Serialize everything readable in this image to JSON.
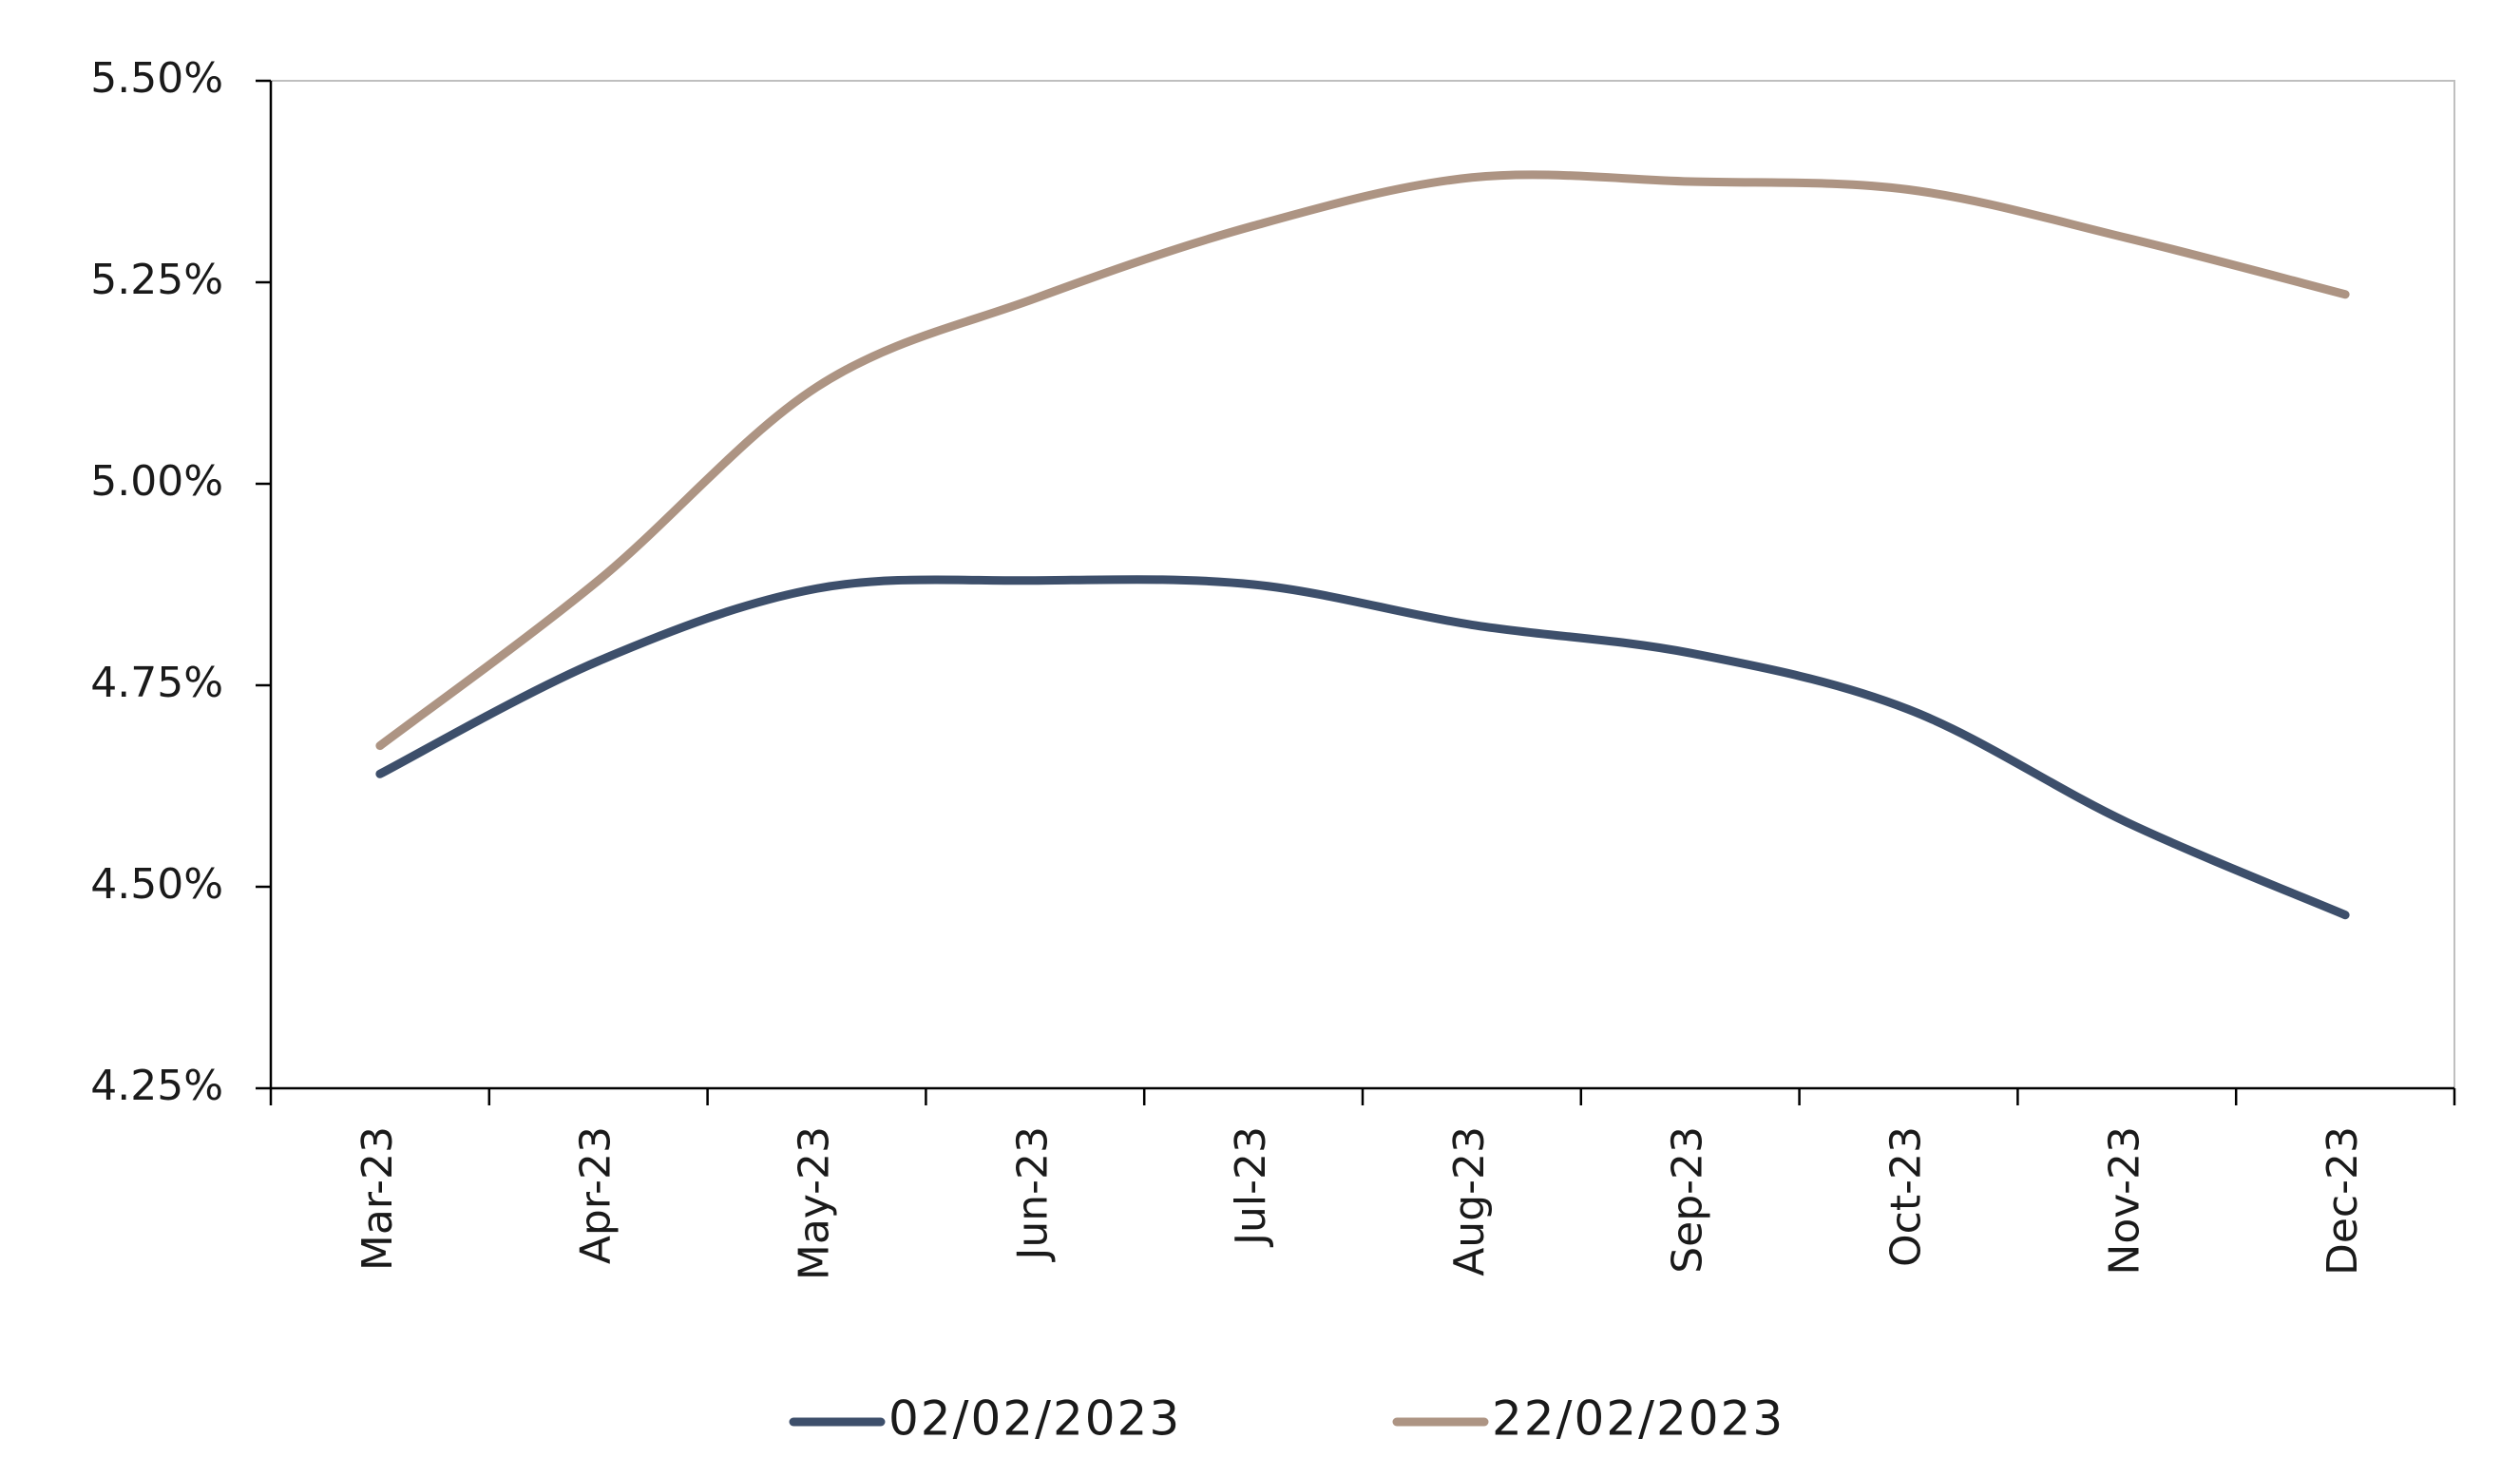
{
  "chart_data": {
    "type": "line",
    "categories": [
      "Mar-23",
      "Apr-23",
      "May-23",
      "Jun-23",
      "Jul-23",
      "Aug-23",
      "Sep-23",
      "Oct-23",
      "Nov-23",
      "Dec-23"
    ],
    "series": [
      {
        "name": "02/02/2023",
        "color": "#3d4f6b",
        "values": [
          4.64,
          4.78,
          4.87,
          4.88,
          4.875,
          4.825,
          4.79,
          4.72,
          4.58,
          4.465
        ]
      },
      {
        "name": "22/02/2023",
        "color": "#ad9483",
        "values": [
          4.675,
          4.88,
          5.12,
          5.23,
          5.32,
          5.38,
          5.375,
          5.365,
          5.305,
          5.235
        ]
      }
    ],
    "y_ticks": [
      "4.25%",
      "4.50%",
      "4.75%",
      "5.00%",
      "5.25%",
      "5.50%"
    ],
    "ylim": [
      4.25,
      5.5
    ],
    "grid": false,
    "legend_position": "bottom",
    "title": "",
    "xlabel": "",
    "ylabel": ""
  }
}
